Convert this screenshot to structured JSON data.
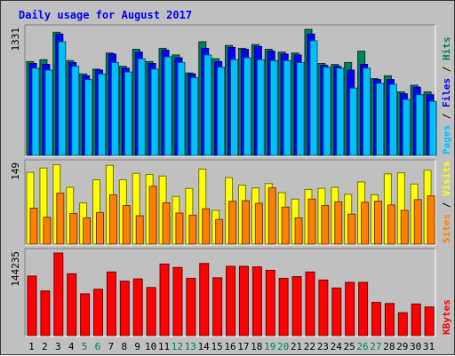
{
  "title": "Daily usage for August 2017",
  "colors": {
    "hits": "#00805c",
    "files": "#0000ff",
    "pages": "#00c0ff",
    "visits": "#ffff00",
    "sites": "#ff8000",
    "kbytes": "#ff0000",
    "weekend_label": "#00805c",
    "weekday_label": "#000000",
    "title": "#0000ff",
    "panel_bg": "#c0c0c0"
  },
  "chart_data": [
    {
      "type": "bar",
      "panel": "hits-files-pages",
      "ymax_label": "1331",
      "ylim": [
        0,
        1331
      ],
      "legend": [
        "Pages",
        "Files",
        "Hits"
      ],
      "categories": [
        "1",
        "2",
        "3",
        "4",
        "5",
        "6",
        "7",
        "8",
        "9",
        "10",
        "11",
        "12",
        "13",
        "14",
        "15",
        "16",
        "17",
        "18",
        "19",
        "20",
        "21",
        "22",
        "23",
        "24",
        "25",
        "26",
        "27",
        "28",
        "29",
        "30",
        "31"
      ],
      "series": [
        {
          "name": "Hits",
          "values": [
            990,
            1010,
            1300,
            1000,
            860,
            910,
            1080,
            940,
            1120,
            990,
            1130,
            1060,
            870,
            1200,
            1020,
            1160,
            1130,
            1170,
            1120,
            1090,
            1080,
            1330,
            970,
            960,
            980,
            1100,
            810,
            840,
            670,
            740,
            670
          ]
        },
        {
          "name": "Files",
          "values": [
            970,
            960,
            1280,
            980,
            840,
            900,
            1070,
            920,
            1090,
            970,
            1110,
            1030,
            860,
            1130,
            990,
            1140,
            1120,
            1150,
            1100,
            1070,
            1060,
            1280,
            950,
            940,
            900,
            960,
            800,
            800,
            650,
            720,
            640
          ]
        },
        {
          "name": "Pages",
          "values": [
            920,
            900,
            1200,
            940,
            800,
            860,
            980,
            880,
            1020,
            910,
            1040,
            980,
            820,
            1060,
            930,
            1010,
            1030,
            1010,
            1000,
            1000,
            980,
            1210,
            930,
            920,
            710,
            920,
            760,
            750,
            590,
            640,
            570
          ]
        }
      ]
    },
    {
      "type": "bar",
      "panel": "visits-sites",
      "ymax_label": "149",
      "ylim": [
        0,
        149
      ],
      "legend": [
        "Sites",
        "Visits"
      ],
      "categories": [
        "1",
        "2",
        "3",
        "4",
        "5",
        "6",
        "7",
        "8",
        "9",
        "10",
        "11",
        "12",
        "13",
        "14",
        "15",
        "16",
        "17",
        "18",
        "19",
        "20",
        "21",
        "22",
        "23",
        "24",
        "25",
        "26",
        "27",
        "28",
        "29",
        "30",
        "31"
      ],
      "series": [
        {
          "name": "Visits",
          "values": [
            134,
            142,
            148,
            106,
            77,
            120,
            147,
            120,
            132,
            130,
            127,
            89,
            104,
            140,
            63,
            124,
            110,
            105,
            113,
            96,
            84,
            102,
            104,
            106,
            93,
            116,
            92,
            131,
            133,
            112,
            138
          ]
        },
        {
          "name": "Sites",
          "values": [
            67,
            50,
            95,
            57,
            49,
            59,
            92,
            72,
            53,
            108,
            77,
            58,
            54,
            66,
            46,
            80,
            81,
            76,
            105,
            69,
            49,
            84,
            72,
            79,
            56,
            78,
            80,
            73,
            63,
            83,
            90
          ]
        }
      ]
    },
    {
      "type": "bar",
      "panel": "kbytes",
      "ymax_label": "144235",
      "ylim": [
        0,
        144235
      ],
      "legend": [
        "KBytes"
      ],
      "categories": [
        "1",
        "2",
        "3",
        "4",
        "5",
        "6",
        "7",
        "8",
        "9",
        "10",
        "11",
        "12",
        "13",
        "14",
        "15",
        "16",
        "17",
        "18",
        "19",
        "20",
        "21",
        "22",
        "23",
        "24",
        "25",
        "26",
        "27",
        "28",
        "29",
        "30",
        "31"
      ],
      "series": [
        {
          "name": "KBytes",
          "values": [
            104000,
            78000,
            144235,
            108000,
            73000,
            81000,
            111000,
            95000,
            99000,
            84000,
            125000,
            119000,
            100000,
            126000,
            101000,
            121000,
            121000,
            120000,
            114000,
            100000,
            103000,
            111000,
            97000,
            83000,
            93000,
            93000,
            58000,
            56000,
            40000,
            55000,
            50000
          ]
        }
      ]
    }
  ],
  "weekend_days": [
    5,
    6,
    12,
    13,
    19,
    20,
    26,
    27
  ]
}
